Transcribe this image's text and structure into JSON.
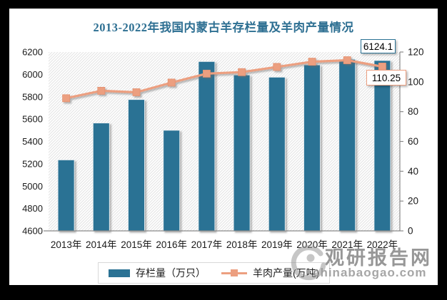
{
  "chart_data": {
    "type": "combo",
    "title": "2013-2022年我国内蒙古羊存栏量及羊肉产量情况",
    "title_color": "#2d6f92",
    "categories": [
      "2013年",
      "2014年",
      "2015年",
      "2016年",
      "2017年",
      "2018年",
      "2019年",
      "2020年",
      "2021年",
      "2022年"
    ],
    "series": [
      {
        "name": "存栏量（万只）",
        "chart_type": "bar",
        "axis": "left",
        "color": "#2B7294",
        "values": [
          5235,
          5565,
          5775,
          5500,
          6115,
          5995,
          5975,
          6085,
          6135,
          6124.1
        ]
      },
      {
        "name": "羊肉产量(万吨)",
        "chart_type": "line",
        "axis": "right",
        "color": "#EC9F80",
        "values": [
          89,
          94,
          93,
          99.5,
          105.5,
          106.5,
          110,
          113.5,
          114.5,
          110.25
        ]
      }
    ],
    "end_labels": {
      "bar": "6124.1",
      "line": "110.25"
    },
    "left_axis": {
      "min": 4600,
      "max": 6200,
      "step": 200,
      "ticks": [
        4600,
        4800,
        5000,
        5200,
        5400,
        5600,
        5800,
        6000,
        6200
      ]
    },
    "right_axis": {
      "min": 0,
      "max": 120,
      "step": 20,
      "ticks": [
        0,
        20,
        40,
        60,
        80,
        100,
        120
      ]
    },
    "grid": false,
    "legend_position": "bottom",
    "plot_background": "diagonal-hatch"
  },
  "watermark": {
    "brand": "观研报告网",
    "domain": "chinabaogao.com"
  }
}
